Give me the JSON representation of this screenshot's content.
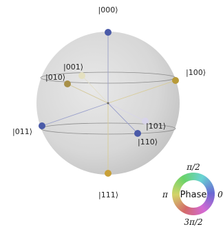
{
  "sphere": {
    "states": [
      {
        "label": "|000⟩",
        "color": "#4a5aa8"
      },
      {
        "label": "|001⟩",
        "color": "#e4e0c0"
      },
      {
        "label": "|010⟩",
        "color": "#a89048"
      },
      {
        "label": "|011⟩",
        "color": "#4a5aa8"
      },
      {
        "label": "|100⟩",
        "color": "#b89a38"
      },
      {
        "label": "|101⟩",
        "color": "#d8d4ea"
      },
      {
        "label": "|110⟩",
        "color": "#4a5aa8"
      },
      {
        "label": "|111⟩",
        "color": "#c8a038"
      }
    ]
  },
  "phase_wheel": {
    "title": "Phase",
    "ticks": {
      "top": "π/2",
      "left": "π",
      "right": "0",
      "bottom": "3π/2"
    }
  }
}
